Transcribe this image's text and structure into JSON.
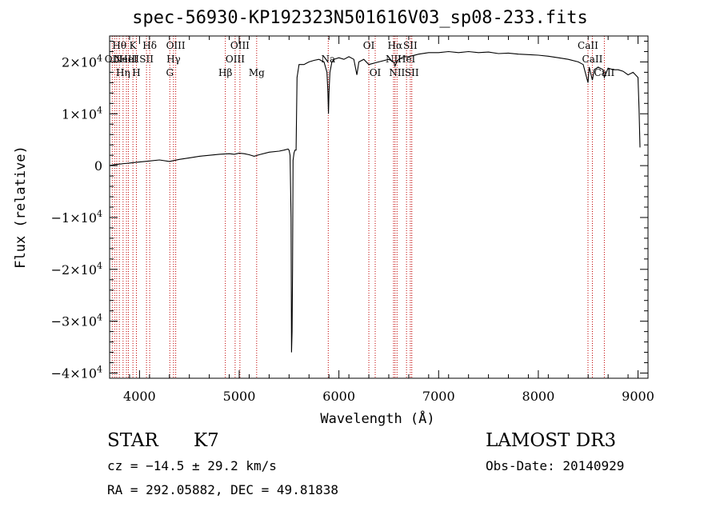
{
  "chart_data": {
    "type": "line",
    "title": "spec-56930-KP192323N501616V03_sp08-233.fits",
    "xlabel": "Wavelength (Å)",
    "ylabel": "Flux (relative)",
    "xlim": [
      3700,
      9100
    ],
    "ylim": [
      -41000,
      25000
    ],
    "x_ticks": [
      4000,
      5000,
      6000,
      7000,
      8000,
      9000
    ],
    "x_tick_labels": [
      "4000",
      "5000",
      "6000",
      "7000",
      "8000",
      "9000"
    ],
    "y_ticks": [
      20000,
      10000,
      0,
      -10000,
      -20000,
      -30000,
      -40000
    ],
    "y_tick_labels": [
      {
        "mantissa": "2×10",
        "exp": "4"
      },
      {
        "mantissa": "1×10",
        "exp": "4"
      },
      {
        "mantissa": "0",
        "exp": ""
      },
      {
        "mantissa": "−1×10",
        "exp": "4"
      },
      {
        "mantissa": "−2×10",
        "exp": "4"
      },
      {
        "mantissa": "−3×10",
        "exp": "4"
      },
      {
        "mantissa": "−4×10",
        "exp": "4"
      }
    ],
    "series": [
      {
        "name": "flux",
        "x": [
          3700,
          3750,
          3800,
          3850,
          3900,
          3950,
          4000,
          4100,
          4200,
          4300,
          4400,
          4500,
          4600,
          4700,
          4800,
          4900,
          4950,
          5000,
          5050,
          5100,
          5150,
          5200,
          5300,
          5400,
          5450,
          5490,
          5500,
          5510,
          5520,
          5525,
          5530,
          5535,
          5540,
          5550,
          5560,
          5570,
          5580,
          5600,
          5650,
          5700,
          5750,
          5800,
          5850,
          5880,
          5890,
          5895,
          5900,
          5910,
          5930,
          5950,
          6000,
          6050,
          6100,
          6150,
          6180,
          6200,
          6250,
          6300,
          6400,
          6500,
          6550,
          6563,
          6580,
          6600,
          6650,
          6700,
          6800,
          6900,
          7000,
          7100,
          7200,
          7300,
          7400,
          7500,
          7600,
          7700,
          7800,
          7900,
          8000,
          8100,
          8200,
          8300,
          8400,
          8450,
          8498,
          8510,
          8542,
          8560,
          8600,
          8650,
          8662,
          8700,
          8750,
          8800,
          8850,
          8900,
          8950,
          9000,
          9010,
          9020
        ],
        "y": [
          0,
          200,
          300,
          400,
          500,
          600,
          700,
          900,
          1100,
          800,
          1200,
          1500,
          1800,
          2000,
          2200,
          2300,
          2200,
          2400,
          2300,
          2100,
          1800,
          2100,
          2600,
          2800,
          3000,
          3200,
          3000,
          2000,
          -10000,
          -36000,
          -32000,
          -20000,
          1000,
          2500,
          3000,
          3000,
          17000,
          19500,
          19500,
          20000,
          20300,
          20500,
          20000,
          18000,
          14000,
          10000,
          14000,
          18000,
          20000,
          20500,
          20800,
          20500,
          21000,
          20500,
          17500,
          20000,
          20500,
          19500,
          20000,
          20500,
          20000,
          19200,
          20000,
          20500,
          21000,
          21000,
          21500,
          21800,
          21800,
          22000,
          21800,
          22000,
          21800,
          21900,
          21600,
          21700,
          21500,
          21400,
          21300,
          21100,
          20800,
          20500,
          20000,
          19500,
          16000,
          19000,
          16500,
          18500,
          19000,
          18500,
          17000,
          18800,
          18500,
          18500,
          18200,
          17500,
          18000,
          17000,
          11000,
          3500
        ]
      }
    ],
    "line_markers": [
      {
        "wavelength": 3727,
        "label": "OII",
        "row": 1
      },
      {
        "wavelength": 3750,
        "label": "",
        "row": 0
      },
      {
        "wavelength": 3771,
        "label": "",
        "row": 0
      },
      {
        "wavelength": 3798,
        "label": "Hθ",
        "row": 0
      },
      {
        "wavelength": 3835,
        "label": "Hη",
        "row": 2
      },
      {
        "wavelength": 3869,
        "label": "NeIII",
        "row": 1
      },
      {
        "wavelength": 3889,
        "label": "HeI",
        "row": 1
      },
      {
        "wavelength": 3934,
        "label": "K",
        "row": 0
      },
      {
        "wavelength": 3969,
        "label": "H",
        "row": 2
      },
      {
        "wavelength": 4070,
        "label": "SII",
        "row": 1
      },
      {
        "wavelength": 4102,
        "label": "Hδ",
        "row": 0
      },
      {
        "wavelength": 4304,
        "label": "G",
        "row": 2
      },
      {
        "wavelength": 4341,
        "label": "Hγ",
        "row": 1
      },
      {
        "wavelength": 4363,
        "label": "OIII",
        "row": 0
      },
      {
        "wavelength": 4861,
        "label": "Hβ",
        "row": 2
      },
      {
        "wavelength": 4959,
        "label": "OIII",
        "row": 1
      },
      {
        "wavelength": 5007,
        "label": "OIII",
        "row": 0
      },
      {
        "wavelength": 5175,
        "label": "Mg",
        "row": 2
      },
      {
        "wavelength": 5893,
        "label": "Na",
        "row": 1
      },
      {
        "wavelength": 6300,
        "label": "OI",
        "row": 0
      },
      {
        "wavelength": 6364,
        "label": "OI",
        "row": 2
      },
      {
        "wavelength": 6548,
        "label": "NII",
        "row": 1
      },
      {
        "wavelength": 6563,
        "label": "Hα",
        "row": 0
      },
      {
        "wavelength": 6583,
        "label": "NII",
        "row": 2
      },
      {
        "wavelength": 6678,
        "label": "HeI",
        "row": 1
      },
      {
        "wavelength": 6716,
        "label": "SII",
        "row": 0
      },
      {
        "wavelength": 6731,
        "label": "SII",
        "row": 2
      },
      {
        "wavelength": 8498,
        "label": "CaII",
        "row": 0
      },
      {
        "wavelength": 8542,
        "label": "CaII",
        "row": 1
      },
      {
        "wavelength": 8662,
        "label": "CaII",
        "row": 2
      }
    ]
  },
  "info": {
    "obj_class": "STAR",
    "obj_subclass": "K7",
    "survey": "LAMOST DR3",
    "redshift": "cz = −14.5 ± 29.2 km/s",
    "obs_date": "Obs-Date: 20140929",
    "coords": "RA = 292.05882, DEC =  49.81838"
  },
  "colors": {
    "line_marker": "#c00000",
    "spectrum": "#000000",
    "axis": "#000000"
  }
}
